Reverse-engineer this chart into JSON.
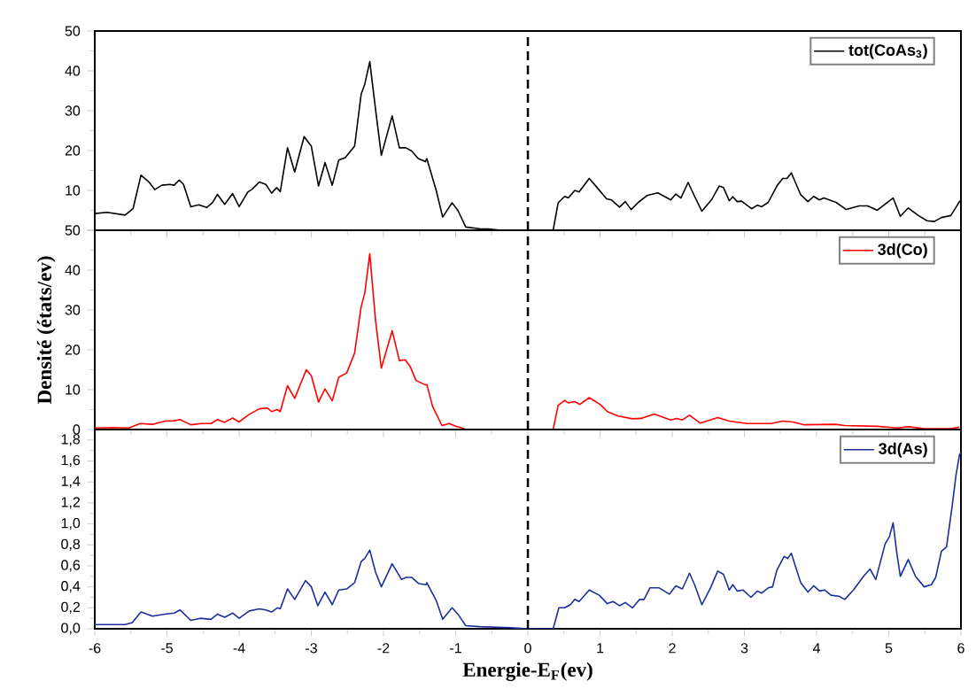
{
  "chart_data": [
    {
      "type": "line",
      "xlim": [
        -6,
        6
      ],
      "xticks": [
        -6,
        -5,
        -4,
        -3,
        -2,
        -1,
        0,
        1,
        2,
        3,
        4,
        5,
        6
      ],
      "ylim": [
        0,
        50
      ],
      "yticks": [
        {
          "value": 0,
          "label": null
        },
        10,
        20,
        30,
        40,
        50
      ],
      "tick_labels": "y",
      "legend": "top right",
      "marker": "none",
      "x": [
        -6,
        -5.83,
        -5.58,
        -5.47,
        -5.36,
        -5.28,
        -5.24,
        -5.17,
        -5.07,
        -4.96,
        -4.9,
        -4.83,
        -4.77,
        -4.67,
        -4.56,
        -4.45,
        -4.37,
        -4.3,
        -4.2,
        -4.09,
        -4.0,
        -3.88,
        -3.82,
        -3.72,
        -3.63,
        -3.55,
        -3.48,
        -3.43,
        -3.33,
        -3.23,
        -3.1,
        -3.0,
        -2.9,
        -2.81,
        -2.71,
        -2.62,
        -2.53,
        -2.4,
        -2.31,
        -2.26,
        -2.19,
        -2.11,
        -2.03,
        -1.88,
        -1.78,
        -1.69,
        -1.61,
        -1.52,
        -1.42,
        -1.4,
        -1.27,
        -1.18,
        -1.05,
        -0.97,
        -0.86,
        -0.67,
        -0.54,
        -0.37,
        0.35,
        0.42,
        0.51,
        0.56,
        0.65,
        0.71,
        0.85,
        0.96,
        1.09,
        1.16,
        1.27,
        1.35,
        1.43,
        1.53,
        1.65,
        1.8,
        1.98,
        2.05,
        2.12,
        2.22,
        2.31,
        2.41,
        2.55,
        2.65,
        2.71,
        2.79,
        2.84,
        2.9,
        2.96,
        3.1,
        3.18,
        3.24,
        3.33,
        3.45,
        3.53,
        3.59,
        3.65,
        3.78,
        3.88,
        3.96,
        4.04,
        4.1,
        4.27,
        4.41,
        4.59,
        4.71,
        4.84,
        4.96,
        5.06,
        5.16,
        5.27,
        5.41,
        5.53,
        5.63,
        5.73,
        5.86,
        5.98,
        6
      ],
      "series": [
        {
          "name": "tot(CoAs$_{3}$)",
          "color": "#000000",
          "values": [
            4.2,
            4.5,
            3.8,
            5.4,
            13.8,
            12.6,
            11.9,
            10.2,
            11.3,
            11.5,
            11.3,
            12.6,
            11.5,
            5.9,
            6.4,
            5.7,
            6.9,
            9.0,
            6.5,
            9.2,
            5.9,
            9.6,
            10.3,
            12.1,
            11.5,
            9.3,
            10.7,
            9.7,
            20.7,
            14.6,
            23.5,
            21.1,
            11.1,
            17.0,
            11.3,
            17.6,
            18.2,
            21.1,
            34.1,
            36.6,
            42.3,
            30.3,
            18.8,
            28.7,
            20.7,
            20.7,
            19.9,
            18.0,
            17.2,
            18.0,
            10.0,
            3.3,
            6.9,
            5.0,
            0.8,
            0.4,
            0.3,
            0,
            0,
            6.9,
            8.5,
            8.1,
            10.0,
            9.6,
            13.0,
            10.7,
            7.9,
            7.6,
            5.8,
            7.2,
            5.2,
            7.0,
            8.7,
            9.4,
            7.6,
            9.1,
            8.1,
            12.0,
            8.5,
            4.8,
            7.8,
            11.1,
            10.7,
            7.4,
            8.4,
            7.2,
            7.3,
            5.4,
            6.3,
            5.9,
            7.0,
            11.1,
            13.0,
            13.0,
            14.4,
            8.9,
            7.2,
            8.5,
            7.6,
            8.1,
            7.0,
            5.2,
            6.1,
            6.1,
            5.0,
            6.7,
            8.1,
            3.5,
            5.6,
            3.7,
            2.4,
            2.2,
            3.2,
            3.7,
            7.2,
            7.5
          ]
        }
      ],
      "ref_lines": [
        {
          "axis": "x",
          "value": 0,
          "color": "#000000",
          "line_style": "dashed"
        }
      ]
    },
    {
      "type": "line",
      "xlim": [
        -6,
        6
      ],
      "xticks": [
        -6,
        -5,
        -4,
        -3,
        -2,
        -1,
        0,
        1,
        2,
        3,
        4,
        5,
        6
      ],
      "ylim": [
        0,
        50
      ],
      "yticks": [
        0,
        10,
        20,
        30,
        40,
        50
      ],
      "tick_labels": "y",
      "legend": "top right",
      "marker": "none",
      "ylabel": "Densité  (états/ev)",
      "x": [
        -6,
        -5.75,
        -5.53,
        -5.37,
        -5.2,
        -5.03,
        -4.9,
        -4.82,
        -4.67,
        -4.52,
        -4.39,
        -4.3,
        -4.2,
        -4.09,
        -4.0,
        -3.86,
        -3.72,
        -3.61,
        -3.55,
        -3.47,
        -3.43,
        -3.33,
        -3.23,
        -3.07,
        -3.0,
        -2.9,
        -2.81,
        -2.71,
        -2.62,
        -2.51,
        -2.4,
        -2.31,
        -2.26,
        -2.19,
        -2.11,
        -2.03,
        -1.88,
        -1.78,
        -1.7,
        -1.63,
        -1.55,
        -1.42,
        -1.4,
        -1.32,
        -1.19,
        -1.09,
        -0.99,
        -0.88,
        -0.69,
        0.35,
        0.42,
        0.51,
        0.56,
        0.65,
        0.72,
        0.85,
        1.0,
        1.1,
        1.25,
        1.45,
        1.57,
        1.75,
        1.98,
        2.06,
        2.14,
        2.24,
        2.39,
        2.63,
        2.79,
        3.04,
        3.37,
        3.53,
        3.67,
        3.82,
        4.26,
        4.39,
        4.84,
        5.12,
        5.28,
        5.49,
        5.86,
        5.98
      ],
      "series": [
        {
          "name": "3d(Co)",
          "color": "#ff0000",
          "values": [
            0.4,
            0.5,
            0.4,
            1.5,
            1.3,
            2.1,
            2.2,
            2.5,
            1.2,
            1.5,
            1.5,
            2.5,
            1.8,
            2.9,
            1.9,
            3.8,
            5.2,
            5.4,
            4.5,
            5.0,
            4.5,
            11.0,
            7.8,
            15.0,
            13.5,
            6.9,
            10.2,
            7.2,
            13.1,
            14.2,
            19.2,
            30.8,
            34.2,
            44.1,
            27.3,
            15.4,
            24.8,
            17.3,
            17.5,
            15.8,
            12.3,
            11.2,
            11.3,
            5.8,
            1.0,
            1.5,
            0.8,
            0.2,
            null,
            0,
            6.1,
            7.3,
            6.7,
            7.0,
            6.3,
            8.0,
            6.3,
            4.5,
            3.4,
            2.7,
            2.8,
            3.9,
            2.4,
            2.8,
            2.4,
            3.6,
            1.6,
            3.0,
            2.1,
            1.5,
            1.5,
            2.1,
            1.9,
            1.2,
            1.3,
            1.0,
            0.8,
            0.4,
            0.7,
            0.2,
            0.2,
            0.6
          ]
        }
      ],
      "ref_lines": [
        {
          "axis": "x",
          "value": 0,
          "color": "#000000",
          "line_style": "dashed"
        }
      ]
    },
    {
      "type": "line",
      "xlim": [
        -6,
        6
      ],
      "xticks": [
        -6,
        -5,
        -4,
        -3,
        -2,
        -1,
        0,
        1,
        2,
        3,
        4,
        5,
        6
      ],
      "ylim": [
        0,
        1.9
      ],
      "yticks": [
        {
          "value": 0,
          "label": "0,0"
        },
        {
          "value": 0.2,
          "label": "0,2"
        },
        {
          "value": 0.4,
          "label": "0,4"
        },
        {
          "value": 0.6,
          "label": "0,6"
        },
        {
          "value": 0.8,
          "label": "0,8"
        },
        {
          "value": 1.0,
          "label": "1,0"
        },
        {
          "value": 1.2,
          "label": "1,2"
        },
        {
          "value": 1.4,
          "label": "1,4"
        },
        {
          "value": 1.6,
          "label": "1,6"
        },
        {
          "value": 1.8,
          "label": "1,8"
        }
      ],
      "legend": "top right",
      "marker": "none",
      "xlabel": "Energie-E$_{F}$(ev)",
      "x": [
        -6,
        -5.58,
        -5.48,
        -5.36,
        -5.2,
        -5.03,
        -4.9,
        -4.82,
        -4.67,
        -4.54,
        -4.39,
        -4.3,
        -4.2,
        -4.09,
        -4.0,
        -3.86,
        -3.72,
        -3.63,
        -3.55,
        -3.47,
        -3.43,
        -3.33,
        -3.23,
        -3.08,
        -3.0,
        -2.91,
        -2.81,
        -2.71,
        -2.62,
        -2.51,
        -2.4,
        -2.31,
        -2.26,
        -2.19,
        -2.11,
        -2.03,
        -1.88,
        -1.75,
        -1.69,
        -1.61,
        -1.51,
        -1.41,
        -1.4,
        -1.27,
        -1.18,
        -1.05,
        -0.97,
        -0.86,
        -0.67,
        -0.24,
        0,
        0.35,
        0.43,
        0.51,
        0.59,
        0.65,
        0.71,
        0.85,
        0.99,
        1.1,
        1.18,
        1.27,
        1.35,
        1.45,
        1.55,
        1.61,
        1.69,
        1.82,
        1.96,
        2.05,
        2.14,
        2.24,
        2.31,
        2.41,
        2.53,
        2.63,
        2.71,
        2.79,
        2.84,
        2.9,
        2.98,
        3.09,
        3.18,
        3.24,
        3.33,
        3.39,
        3.45,
        3.55,
        3.6,
        3.65,
        3.78,
        3.88,
        3.96,
        4.04,
        4.11,
        4.2,
        4.31,
        4.39,
        4.51,
        4.65,
        4.74,
        4.82,
        4.95,
        5.01,
        5.06,
        5.11,
        5.16,
        5.27,
        5.37,
        5.49,
        5.59,
        5.65,
        5.73,
        5.8,
        5.88,
        5.93,
        5.98,
        6
      ],
      "series": [
        {
          "name": "3d(As)",
          "color": "#1c2f9c",
          "values": [
            0.04,
            0.04,
            0.06,
            0.16,
            0.12,
            0.14,
            0.15,
            0.18,
            0.08,
            0.1,
            0.09,
            0.14,
            0.11,
            0.15,
            0.1,
            0.17,
            0.19,
            0.18,
            0.16,
            0.2,
            0.19,
            0.38,
            0.28,
            0.46,
            0.4,
            0.22,
            0.35,
            0.23,
            0.37,
            0.38,
            0.44,
            0.64,
            0.67,
            0.75,
            0.54,
            0.4,
            0.62,
            0.47,
            0.49,
            0.49,
            0.43,
            0.42,
            0.44,
            0.27,
            0.09,
            0.2,
            0.14,
            0.03,
            0.02,
            0.01,
            0,
            0,
            0.2,
            0.2,
            0.23,
            0.28,
            0.26,
            0.37,
            0.32,
            0.24,
            0.26,
            0.22,
            0.25,
            0.2,
            0.28,
            0.28,
            0.39,
            0.39,
            0.33,
            0.41,
            0.38,
            0.53,
            0.42,
            0.23,
            0.39,
            0.55,
            0.52,
            0.37,
            0.42,
            0.36,
            0.37,
            0.3,
            0.36,
            0.34,
            0.39,
            0.4,
            0.56,
            0.69,
            0.67,
            0.72,
            0.44,
            0.35,
            0.41,
            0.36,
            0.37,
            0.32,
            0.31,
            0.28,
            0.37,
            0.5,
            0.57,
            0.47,
            0.81,
            0.88,
            1.01,
            0.73,
            0.5,
            0.66,
            0.5,
            0.4,
            0.42,
            0.49,
            0.74,
            0.78,
            1.18,
            1.46,
            1.66,
            1.68
          ]
        }
      ],
      "ref_lines": [
        {
          "axis": "x",
          "value": 0,
          "color": "#000000",
          "line_style": "dashed"
        }
      ]
    }
  ]
}
